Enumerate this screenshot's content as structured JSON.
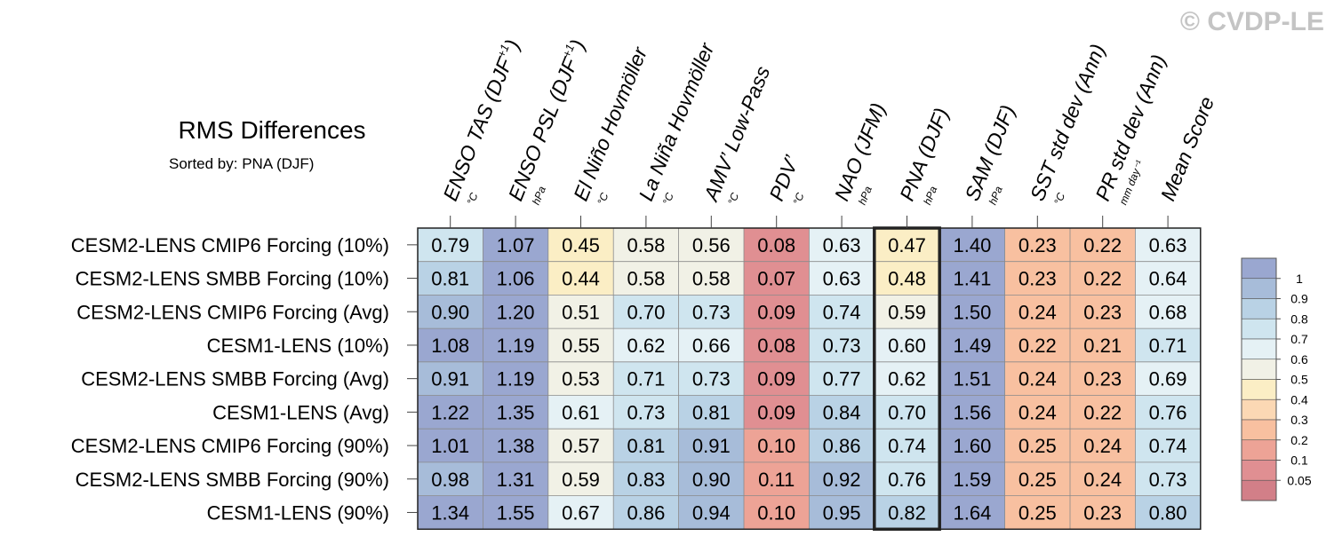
{
  "watermark": "© CVDP-LE",
  "chart_data": {
    "type": "heatmap",
    "title": "RMS Differences",
    "subtitle": "Sorted by: PNA (DJF)",
    "columns": [
      {
        "label": "ENSO TAS (DJF",
        "sup": "+1",
        "close": ")",
        "unit": "°C"
      },
      {
        "label": "ENSO PSL (DJF",
        "sup": "+1",
        "close": ")",
        "unit": "hPa"
      },
      {
        "label": "El Niño Hovmöller",
        "unit": "°C"
      },
      {
        "label": "La Niña Hovmöller",
        "unit": "°C"
      },
      {
        "label": "AMV’ Low-Pass",
        "unit": "°C"
      },
      {
        "label": "PDV’",
        "unit": "°C"
      },
      {
        "label": "NAO (JFM)",
        "unit": "hPa"
      },
      {
        "label": "PNA (DJF)",
        "unit": "hPa"
      },
      {
        "label": "SAM (DJF)",
        "unit": "hPa"
      },
      {
        "label": "SST std dev (Ann)",
        "unit": "°C"
      },
      {
        "label": "PR std dev (Ann)",
        "unit": "mm day⁻¹"
      },
      {
        "label": "Mean Score",
        "unit": ""
      }
    ],
    "rows": [
      "CESM2-LENS CMIP6 Forcing (10%)",
      "CESM2-LENS SMBB Forcing (10%)",
      "CESM2-LENS CMIP6 Forcing (Avg)",
      "CESM1-LENS (10%)",
      "CESM2-LENS SMBB Forcing (Avg)",
      "CESM1-LENS (Avg)",
      "CESM2-LENS CMIP6 Forcing (90%)",
      "CESM2-LENS SMBB Forcing (90%)",
      "CESM1-LENS (90%)"
    ],
    "values": [
      [
        0.79,
        1.07,
        0.45,
        0.58,
        0.56,
        0.08,
        0.63,
        0.47,
        1.4,
        0.23,
        0.22,
        0.63
      ],
      [
        0.81,
        1.06,
        0.44,
        0.58,
        0.58,
        0.07,
        0.63,
        0.48,
        1.41,
        0.23,
        0.22,
        0.64
      ],
      [
        0.9,
        1.2,
        0.51,
        0.7,
        0.73,
        0.09,
        0.74,
        0.59,
        1.5,
        0.24,
        0.23,
        0.68
      ],
      [
        1.08,
        1.19,
        0.55,
        0.62,
        0.66,
        0.08,
        0.73,
        0.6,
        1.49,
        0.22,
        0.21,
        0.71
      ],
      [
        0.91,
        1.19,
        0.53,
        0.71,
        0.73,
        0.09,
        0.77,
        0.62,
        1.51,
        0.24,
        0.23,
        0.69
      ],
      [
        1.22,
        1.35,
        0.61,
        0.73,
        0.81,
        0.09,
        0.84,
        0.7,
        1.56,
        0.24,
        0.22,
        0.76
      ],
      [
        1.01,
        1.38,
        0.57,
        0.81,
        0.91,
        0.1,
        0.86,
        0.74,
        1.6,
        0.25,
        0.24,
        0.74
      ],
      [
        0.98,
        1.31,
        0.59,
        0.83,
        0.9,
        0.11,
        0.92,
        0.76,
        1.59,
        0.25,
        0.24,
        0.73
      ],
      [
        1.34,
        1.55,
        0.67,
        0.86,
        0.94,
        0.1,
        0.95,
        0.82,
        1.64,
        0.25,
        0.23,
        0.8
      ]
    ],
    "highlighted_column": "PNA (DJF)",
    "colorbar": {
      "levels": [
        "0.05",
        "0.1",
        "0.2",
        "0.3",
        "0.4",
        "0.5",
        "0.6",
        "0.7",
        "0.8",
        "0.9",
        "1"
      ],
      "colors": [
        "#9aa7d0",
        "#a7bcd9",
        "#b9d2e5",
        "#cfe5ef",
        "#e5f1f5",
        "#f1f1e6",
        "#fbeec5",
        "#fbd8b4",
        "#f8c0a0",
        "#eda396",
        "#e08f92",
        "#d27f88"
      ]
    }
  }
}
